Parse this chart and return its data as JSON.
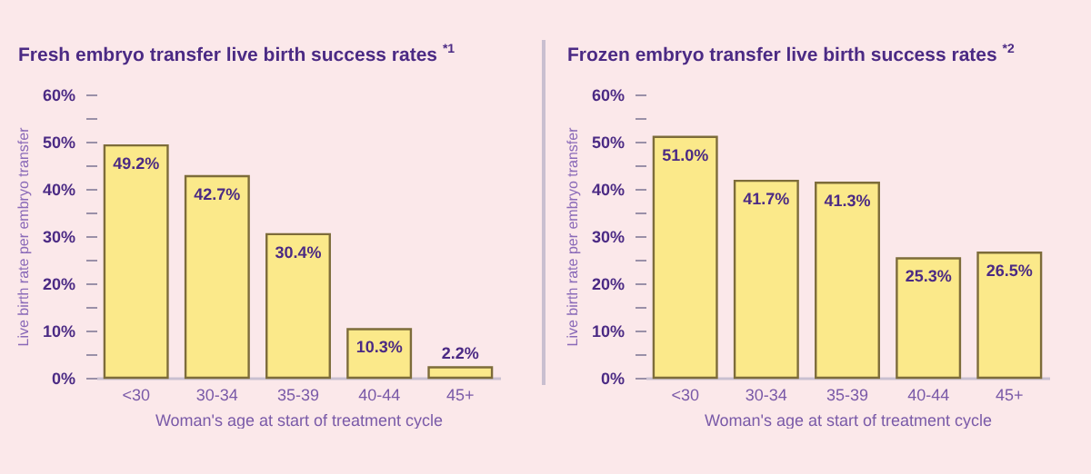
{
  "chart_data": [
    {
      "type": "bar",
      "title": "Fresh embryo transfer live birth success rates $^{*1}$",
      "xlabel": "Woman's age at start of treatment cycle",
      "ylabel": "Live birth rate per embryo transfer",
      "categories": [
        "<30",
        "30-34",
        "35-39",
        "40-44",
        "45+"
      ],
      "values": [
        49.2,
        42.7,
        30.4,
        10.3,
        2.2
      ],
      "color": "#fbe98a",
      "ylim": [
        0,
        60
      ],
      "yticks": [
        {
          "value": 0,
          "label": "0%"
        },
        {
          "value": 5,
          "label": null
        },
        {
          "value": 10,
          "label": "10%"
        },
        {
          "value": 15,
          "label": null
        },
        {
          "value": 20,
          "label": "20%"
        },
        {
          "value": 25,
          "label": null
        },
        {
          "value": 30,
          "label": "30%"
        },
        {
          "value": 35,
          "label": null
        },
        {
          "value": 40,
          "label": "40%"
        },
        {
          "value": 45,
          "label": null
        },
        {
          "value": 50,
          "label": "50%"
        },
        {
          "value": 55,
          "label": null
        },
        {
          "value": 60,
          "label": "60%"
        }
      ],
      "value_labels": [
        "49.2%",
        "42.7%",
        "30.4%",
        "10.3%",
        "2.2%"
      ]
    },
    {
      "type": "bar",
      "title": "Frozen embryo transfer live birth success rates $^{*2}$",
      "xlabel": "Woman's age at start of treatment cycle",
      "ylabel": "Live birth rate per embryo transfer",
      "categories": [
        "<30",
        "30-34",
        "35-39",
        "40-44",
        "45+"
      ],
      "values": [
        51.0,
        41.7,
        41.3,
        25.3,
        26.5
      ],
      "color": "#fbe98a",
      "ylim": [
        0,
        60
      ],
      "yticks": [
        {
          "value": 0,
          "label": "0%"
        },
        {
          "value": 5,
          "label": null
        },
        {
          "value": 10,
          "label": "10%"
        },
        {
          "value": 15,
          "label": null
        },
        {
          "value": 20,
          "label": "20%"
        },
        {
          "value": 25,
          "label": null
        },
        {
          "value": 30,
          "label": "30%"
        },
        {
          "value": 35,
          "label": null
        },
        {
          "value": 40,
          "label": "40%"
        },
        {
          "value": 45,
          "label": null
        },
        {
          "value": 50,
          "label": "50%"
        },
        {
          "value": 55,
          "label": null
        },
        {
          "value": 60,
          "label": "60%"
        }
      ],
      "value_labels": [
        "51.0%",
        "41.7%",
        "41.3%",
        "25.3%",
        "26.5%"
      ]
    }
  ]
}
